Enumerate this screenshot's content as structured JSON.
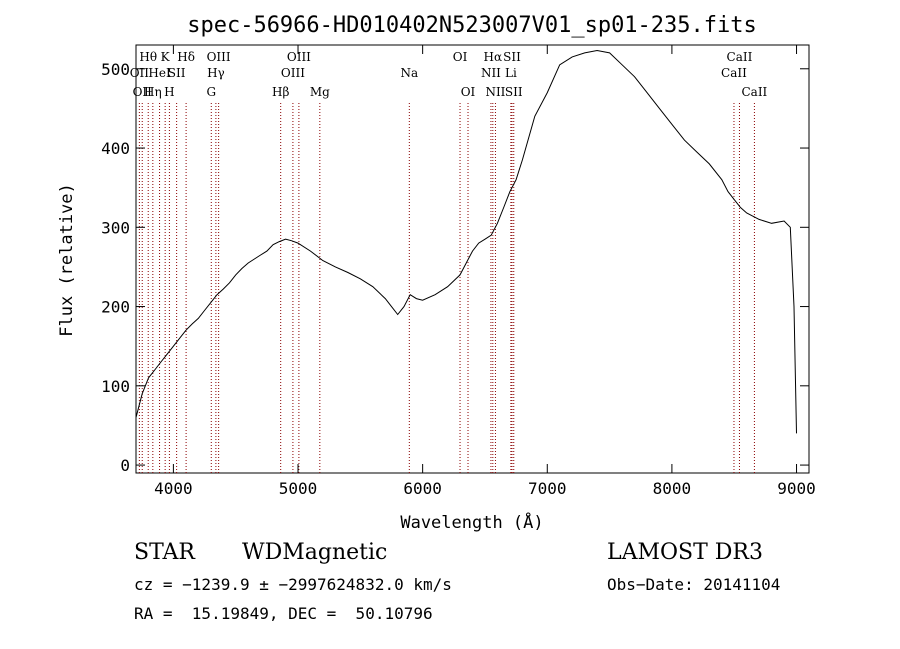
{
  "chart_data": {
    "type": "line",
    "title": "spec-56966-HD010402N523007V01_sp01-235.fits",
    "xlabel": "Wavelength (Å)",
    "ylabel": "Flux (relative)",
    "xlim": [
      3700,
      9100
    ],
    "ylim": [
      -10,
      530
    ],
    "x_ticks": [
      4000,
      5000,
      6000,
      7000,
      8000,
      9000
    ],
    "y_ticks": [
      0,
      100,
      200,
      300,
      400,
      500
    ],
    "grid": false,
    "line_color": "#000000",
    "marker_color": "#8b0000",
    "series": [
      {
        "x": [
          3700,
          3750,
          3800,
          3850,
          3900,
          3950,
          4000,
          4050,
          4100,
          4150,
          4200,
          4250,
          4300,
          4350,
          4400,
          4450,
          4500,
          4550,
          4600,
          4650,
          4700,
          4750,
          4800,
          4850,
          4900,
          4950,
          5000,
          5100,
          5200,
          5300,
          5400,
          5500,
          5600,
          5700,
          5750,
          5800,
          5850,
          5900,
          5950,
          6000,
          6100,
          6200,
          6300,
          6400,
          6450,
          6500,
          6550,
          6600,
          6650,
          6700,
          6750,
          6800,
          6900,
          7000,
          7100,
          7200,
          7300,
          7400,
          7500,
          7600,
          7700,
          7800,
          7900,
          8000,
          8100,
          8200,
          8300,
          8400,
          8450,
          8500,
          8550,
          8600,
          8700,
          8800,
          8900,
          8950,
          8980,
          9000
        ],
        "y": [
          60,
          90,
          110,
          120,
          130,
          140,
          150,
          160,
          170,
          178,
          185,
          195,
          205,
          215,
          222,
          230,
          240,
          248,
          255,
          260,
          265,
          270,
          278,
          282,
          285,
          283,
          280,
          270,
          258,
          250,
          243,
          235,
          225,
          210,
          200,
          190,
          200,
          215,
          210,
          208,
          215,
          225,
          240,
          270,
          280,
          285,
          290,
          305,
          325,
          345,
          360,
          385,
          440,
          470,
          505,
          515,
          520,
          523,
          520,
          505,
          490,
          470,
          450,
          430,
          410,
          395,
          380,
          360,
          345,
          335,
          325,
          318,
          310,
          305,
          308,
          300,
          200,
          40
        ]
      }
    ],
    "line_markers": [
      {
        "wavelength": 3727,
        "label": "OII",
        "row": 2
      },
      {
        "wavelength": 3750,
        "label": "OII",
        "row": 3
      },
      {
        "wavelength": 3798,
        "label": "Hθ",
        "row": 1
      },
      {
        "wavelength": 3835,
        "label": "Hη",
        "row": 3
      },
      {
        "wavelength": 3889,
        "label": "HeI",
        "row": 2
      },
      {
        "wavelength": 3934,
        "label": "K",
        "row": 1
      },
      {
        "wavelength": 3968,
        "label": "H",
        "row": 3
      },
      {
        "wavelength": 4026,
        "label": "SII",
        "row": 2
      },
      {
        "wavelength": 4102,
        "label": "Hδ",
        "row": 1
      },
      {
        "wavelength": 4304,
        "label": "G",
        "row": 3
      },
      {
        "wavelength": 4341,
        "label": "Hγ",
        "row": 2
      },
      {
        "wavelength": 4363,
        "label": "OIII",
        "row": 1
      },
      {
        "wavelength": 4861,
        "label": "Hβ",
        "row": 3
      },
      {
        "wavelength": 4959,
        "label": "OIII",
        "row": 2
      },
      {
        "wavelength": 5007,
        "label": "OIII",
        "row": 1
      },
      {
        "wavelength": 5175,
        "label": "Mg",
        "row": 3
      },
      {
        "wavelength": 5893,
        "label": "Na",
        "row": 2
      },
      {
        "wavelength": 6300,
        "label": "OI",
        "row": 1
      },
      {
        "wavelength": 6364,
        "label": "OI",
        "row": 3
      },
      {
        "wavelength": 6548,
        "label": "NII",
        "row": 2
      },
      {
        "wavelength": 6563,
        "label": "Hα",
        "row": 1
      },
      {
        "wavelength": 6584,
        "label": "NII",
        "row": 3
      },
      {
        "wavelength": 6708,
        "label": "Li",
        "row": 2
      },
      {
        "wavelength": 6717,
        "label": "SII",
        "row": 1
      },
      {
        "wavelength": 6731,
        "label": "SII",
        "row": 3
      },
      {
        "wavelength": 8498,
        "label": "CaII",
        "row": 2
      },
      {
        "wavelength": 8542,
        "label": "CaII",
        "row": 1
      },
      {
        "wavelength": 8662,
        "label": "CaII",
        "row": 3
      }
    ]
  },
  "info": {
    "class_label": "STAR",
    "subclass": "WDMagnetic",
    "survey": "LAMOST DR3",
    "cz_line": "cz = −1239.9 ± −2997624832.0 km/s",
    "obs_date": "Obs−Date: 20141104",
    "coords": "RA =  15.19849, DEC =  50.10796"
  }
}
